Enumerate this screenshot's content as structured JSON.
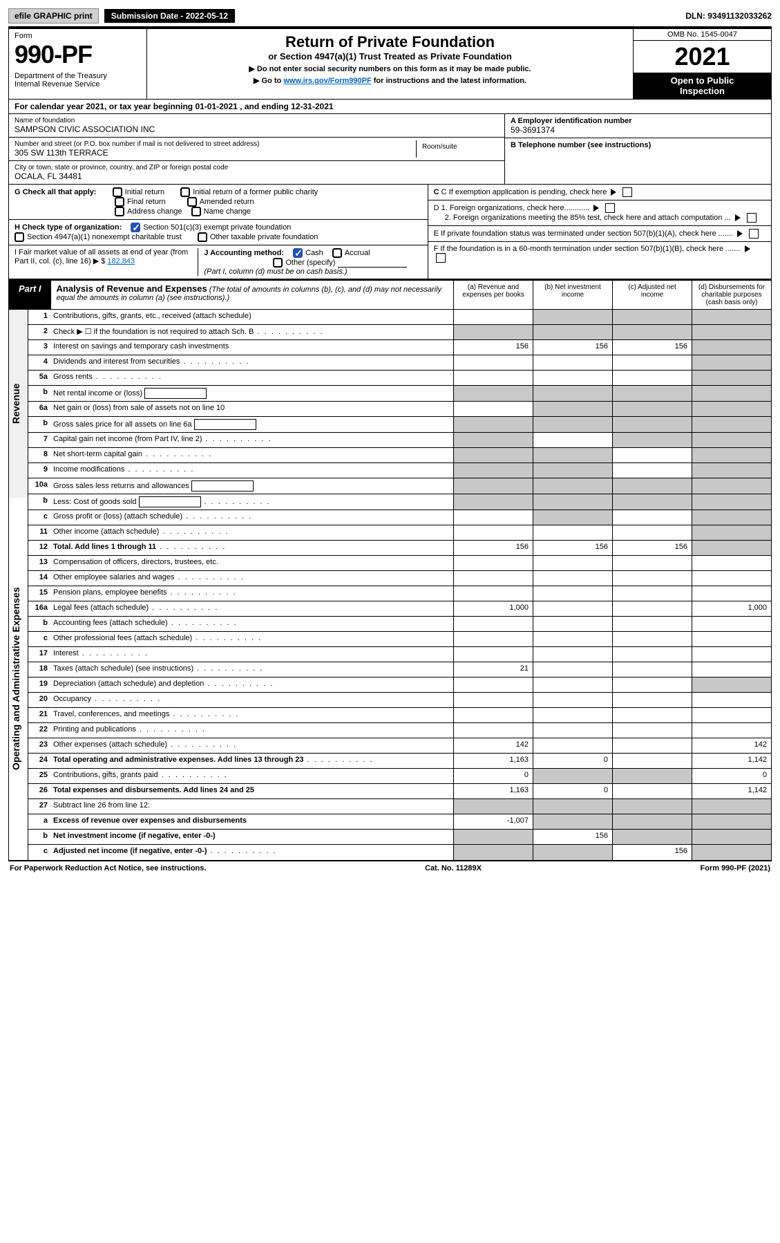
{
  "topbar": {
    "efile": "efile GRAPHIC print",
    "subdate_label": "Submission Date - 2022-05-12",
    "dln": "DLN: 93491132033262"
  },
  "header": {
    "form_word": "Form",
    "form_no": "990-PF",
    "dept": "Department of the Treasury\nInternal Revenue Service",
    "title": "Return of Private Foundation",
    "subtitle": "or Section 4947(a)(1) Trust Treated as Private Foundation",
    "note1": "▶ Do not enter social security numbers on this form as it may be made public.",
    "note2_pre": "▶ Go to ",
    "note2_link": "www.irs.gov/Form990PF",
    "note2_post": " for instructions and the latest information.",
    "omb": "OMB No. 1545-0047",
    "year": "2021",
    "open": "Open to Public\nInspection"
  },
  "cal": {
    "text": "For calendar year 2021, or tax year beginning 01-01-2021                         , and ending 12-31-2021"
  },
  "info": {
    "name_lbl": "Name of foundation",
    "name": "SAMPSON CIVIC ASSOCIATION INC",
    "addr_lbl": "Number and street (or P.O. box number if mail is not delivered to street address)",
    "addr": "305 SW 113th TERRACE",
    "room_lbl": "Room/suite",
    "city_lbl": "City or town, state or province, country, and ZIP or foreign postal code",
    "city": "OCALA, FL  34481",
    "a_lbl": "A Employer identification number",
    "a_val": "59-3691374",
    "b_lbl": "B Telephone number (see instructions)",
    "c_lbl": "C If exemption application is pending, check here",
    "d1": "D 1. Foreign organizations, check here............",
    "d2": "2. Foreign organizations meeting the 85% test, check here and attach computation ...",
    "e": "E  If private foundation status was terminated under section 507(b)(1)(A), check here .......",
    "f": "F  If the foundation is in a 60-month termination under section 507(b)(1)(B), check here ......."
  },
  "g": {
    "label": "G Check all that apply:",
    "opts": [
      "Initial return",
      "Final return",
      "Address change",
      "Initial return of a former public charity",
      "Amended return",
      "Name change"
    ]
  },
  "h": {
    "label": "H Check type of organization:",
    "o1": "Section 501(c)(3) exempt private foundation",
    "o2": "Section 4947(a)(1) nonexempt charitable trust",
    "o3": "Other taxable private foundation"
  },
  "i": {
    "label": "I Fair market value of all assets at end of year (from Part II, col. (c), line 16) ▶ $",
    "amount": "182,843"
  },
  "j": {
    "label": "J Accounting method:",
    "cash": "Cash",
    "accrual": "Accrual",
    "other": "Other (specify)",
    "note": "(Part I, column (d) must be on cash basis.)"
  },
  "part1": {
    "tag": "Part I",
    "title": "Analysis of Revenue and Expenses",
    "sub": "(The total of amounts in columns (b), (c), and (d) may not necessarily equal the amounts in column (a) (see instructions).)",
    "cols": {
      "a": "(a)   Revenue and expenses per books",
      "b": "(b)   Net investment income",
      "c": "(c)   Adjusted net income",
      "d": "(d)  Disbursements for charitable purposes (cash basis only)"
    }
  },
  "side": {
    "rev": "Revenue",
    "exp": "Operating and Administrative Expenses"
  },
  "rows": [
    {
      "n": "1",
      "d": "Contributions, gifts, grants, etc., received (attach schedule)",
      "a": "",
      "b": "grey",
      "c": "grey",
      "dd": "grey"
    },
    {
      "n": "2",
      "d": "Check ▶ ☐ if the foundation is not required to attach Sch. B",
      "dots": true,
      "a": "grey",
      "b": "grey",
      "c": "grey",
      "dd": "grey"
    },
    {
      "n": "3",
      "d": "Interest on savings and temporary cash investments",
      "a": "156",
      "b": "156",
      "c": "156",
      "dd": "grey"
    },
    {
      "n": "4",
      "d": "Dividends and interest from securities",
      "dots": true,
      "a": "",
      "b": "",
      "c": "",
      "dd": "grey"
    },
    {
      "n": "5a",
      "d": "Gross rents",
      "dots": true,
      "a": "",
      "b": "",
      "c": "",
      "dd": "grey"
    },
    {
      "n": "b",
      "d": "Net rental income or (loss)",
      "box": true,
      "a": "grey",
      "b": "grey",
      "c": "grey",
      "dd": "grey"
    },
    {
      "n": "6a",
      "d": "Net gain or (loss) from sale of assets not on line 10",
      "a": "",
      "b": "grey",
      "c": "grey",
      "dd": "grey"
    },
    {
      "n": "b",
      "d": "Gross sales price for all assets on line 6a",
      "box": true,
      "a": "grey",
      "b": "grey",
      "c": "grey",
      "dd": "grey"
    },
    {
      "n": "7",
      "d": "Capital gain net income (from Part IV, line 2)",
      "dots": true,
      "a": "grey",
      "b": "",
      "c": "grey",
      "dd": "grey"
    },
    {
      "n": "8",
      "d": "Net short-term capital gain",
      "dots": true,
      "a": "grey",
      "b": "grey",
      "c": "",
      "dd": "grey"
    },
    {
      "n": "9",
      "d": "Income modifications",
      "dots": true,
      "a": "grey",
      "b": "grey",
      "c": "",
      "dd": "grey"
    },
    {
      "n": "10a",
      "d": "Gross sales less returns and allowances",
      "box": true,
      "a": "grey",
      "b": "grey",
      "c": "grey",
      "dd": "grey"
    },
    {
      "n": "b",
      "d": "Less: Cost of goods sold",
      "dots": true,
      "box": true,
      "a": "grey",
      "b": "grey",
      "c": "grey",
      "dd": "grey"
    },
    {
      "n": "c",
      "d": "Gross profit or (loss) (attach schedule)",
      "dots": true,
      "a": "",
      "b": "grey",
      "c": "",
      "dd": "grey"
    },
    {
      "n": "11",
      "d": "Other income (attach schedule)",
      "dots": true,
      "a": "",
      "b": "",
      "c": "",
      "dd": "grey"
    },
    {
      "n": "12",
      "d": "Total. Add lines 1 through 11",
      "dots": true,
      "bold": true,
      "a": "156",
      "b": "156",
      "c": "156",
      "dd": "grey"
    }
  ],
  "rows_exp": [
    {
      "n": "13",
      "d": "Compensation of officers, directors, trustees, etc.",
      "a": "",
      "b": "",
      "c": "",
      "dd": ""
    },
    {
      "n": "14",
      "d": "Other employee salaries and wages",
      "dots": true,
      "a": "",
      "b": "",
      "c": "",
      "dd": ""
    },
    {
      "n": "15",
      "d": "Pension plans, employee benefits",
      "dots": true,
      "a": "",
      "b": "",
      "c": "",
      "dd": ""
    },
    {
      "n": "16a",
      "d": "Legal fees (attach schedule)",
      "dots": true,
      "a": "1,000",
      "b": "",
      "c": "",
      "dd": "1,000"
    },
    {
      "n": "b",
      "d": "Accounting fees (attach schedule)",
      "dots": true,
      "a": "",
      "b": "",
      "c": "",
      "dd": ""
    },
    {
      "n": "c",
      "d": "Other professional fees (attach schedule)",
      "dots": true,
      "a": "",
      "b": "",
      "c": "",
      "dd": ""
    },
    {
      "n": "17",
      "d": "Interest",
      "dots": true,
      "a": "",
      "b": "",
      "c": "",
      "dd": ""
    },
    {
      "n": "18",
      "d": "Taxes (attach schedule) (see instructions)",
      "dots": true,
      "a": "21",
      "b": "",
      "c": "",
      "dd": ""
    },
    {
      "n": "19",
      "d": "Depreciation (attach schedule) and depletion",
      "dots": true,
      "a": "",
      "b": "",
      "c": "",
      "dd": "grey"
    },
    {
      "n": "20",
      "d": "Occupancy",
      "dots": true,
      "a": "",
      "b": "",
      "c": "",
      "dd": ""
    },
    {
      "n": "21",
      "d": "Travel, conferences, and meetings",
      "dots": true,
      "a": "",
      "b": "",
      "c": "",
      "dd": ""
    },
    {
      "n": "22",
      "d": "Printing and publications",
      "dots": true,
      "a": "",
      "b": "",
      "c": "",
      "dd": ""
    },
    {
      "n": "23",
      "d": "Other expenses (attach schedule)",
      "dots": true,
      "a": "142",
      "b": "",
      "c": "",
      "dd": "142"
    },
    {
      "n": "24",
      "d": "Total operating and administrative expenses. Add lines 13 through 23",
      "dots": true,
      "bold": true,
      "a": "1,163",
      "b": "0",
      "c": "",
      "dd": "1,142"
    },
    {
      "n": "25",
      "d": "Contributions, gifts, grants paid",
      "dots": true,
      "a": "0",
      "b": "grey",
      "c": "grey",
      "dd": "0"
    },
    {
      "n": "26",
      "d": "Total expenses and disbursements. Add lines 24 and 25",
      "bold": true,
      "a": "1,163",
      "b": "0",
      "c": "",
      "dd": "1,142"
    },
    {
      "n": "27",
      "d": "Subtract line 26 from line 12:",
      "a": "grey",
      "b": "grey",
      "c": "grey",
      "dd": "grey"
    },
    {
      "n": "a",
      "d": "Excess of revenue over expenses and disbursements",
      "bold": true,
      "a": "-1,007",
      "b": "grey",
      "c": "grey",
      "dd": "grey"
    },
    {
      "n": "b",
      "d": "Net investment income (if negative, enter -0-)",
      "bold": true,
      "a": "grey",
      "b": "156",
      "c": "grey",
      "dd": "grey"
    },
    {
      "n": "c",
      "d": "Adjusted net income (if negative, enter -0-)",
      "dots": true,
      "bold": true,
      "a": "grey",
      "b": "grey",
      "c": "156",
      "dd": "grey"
    }
  ],
  "footer": {
    "left": "For Paperwork Reduction Act Notice, see instructions.",
    "mid": "Cat. No. 11289X",
    "right": "Form 990-PF (2021)"
  },
  "colors": {
    "grey": "#c8c8c8",
    "link": "#0066cc",
    "check": "#2050c0"
  }
}
